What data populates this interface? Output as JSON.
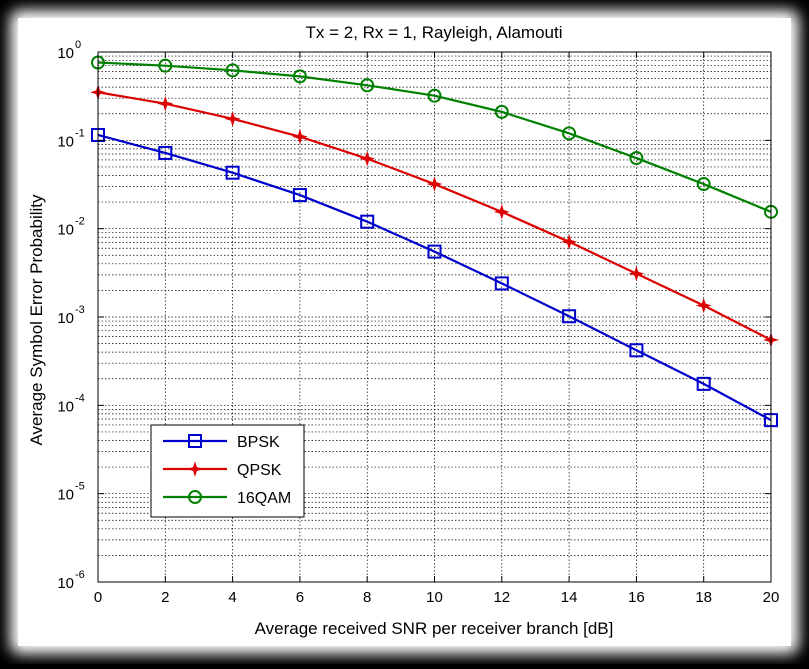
{
  "chart_data": {
    "type": "line",
    "title": "Tx = 2, Rx = 1, Rayleigh, Alamouti",
    "xlabel": "Average received SNR per receiver branch [dB]",
    "ylabel": "Average Symbol Error Probability",
    "xlim": [
      0,
      20
    ],
    "ylim": [
      1e-06,
      1
    ],
    "yscale": "log",
    "grid": true,
    "legend_position": "bottom-left",
    "x_ticks": [
      "0",
      "2",
      "4",
      "6",
      "8",
      "10",
      "12",
      "14",
      "16",
      "18",
      "20"
    ],
    "y_ticks": [
      {
        "base": "10",
        "exp": "0"
      },
      {
        "base": "10",
        "exp": "-1"
      },
      {
        "base": "10",
        "exp": "-2"
      },
      {
        "base": "10",
        "exp": "-3"
      },
      {
        "base": "10",
        "exp": "-4"
      },
      {
        "base": "10",
        "exp": "-5"
      },
      {
        "base": "10",
        "exp": "-6"
      }
    ],
    "x": [
      0,
      2,
      4,
      6,
      8,
      10,
      12,
      14,
      16,
      18,
      20
    ],
    "series": [
      {
        "name": "BPSK",
        "color": "#0000cc",
        "marker": "square",
        "values": [
          0.115,
          0.072,
          0.043,
          0.024,
          0.012,
          0.0055,
          0.0024,
          0.00102,
          0.00042,
          0.000175,
          6.8e-05
        ]
      },
      {
        "name": "QPSK",
        "color": "#dd0000",
        "marker": "star",
        "values": [
          0.35,
          0.26,
          0.175,
          0.11,
          0.062,
          0.032,
          0.0155,
          0.0071,
          0.0031,
          0.00135,
          0.00055
        ]
      },
      {
        "name": "16QAM",
        "color": "#008000",
        "marker": "circle",
        "values": [
          0.76,
          0.7,
          0.62,
          0.53,
          0.42,
          0.32,
          0.21,
          0.12,
          0.063,
          0.032,
          0.0155
        ]
      }
    ]
  }
}
